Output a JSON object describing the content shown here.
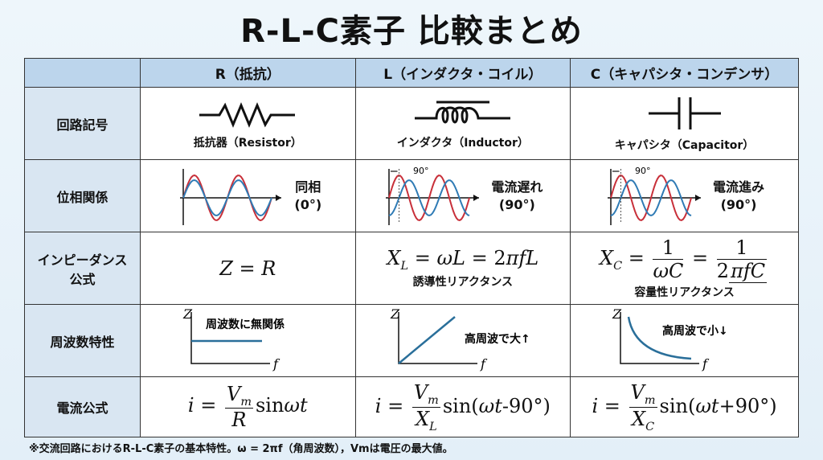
{
  "title": "R-L-C素子 比較まとめ",
  "headers": [
    "",
    "R（抵抗）",
    "L（インダクタ・コイル）",
    "C（キャパシタ・コンデンサ）"
  ],
  "rows": {
    "symbol": {
      "label": "回路記号",
      "r": "抵抗器（Resistor）",
      "l": "インダクタ（Inductor）",
      "c": "キャパシタ（Capacitor）"
    },
    "phase": {
      "label": "位相関係",
      "r": [
        "同相",
        "(0°)"
      ],
      "l": [
        "電流遅れ",
        "(90°)"
      ],
      "c": [
        "電流進み",
        "(90°)"
      ],
      "shift": "90°"
    },
    "impedance": {
      "label": [
        "インピーダンス",
        "公式"
      ],
      "r": "Z = R",
      "l": "X_L = ωL = 2πfL",
      "l_sub": "誘導性リアクタンス",
      "c": "X_C = 1/ωC = 1/2πfC",
      "c_sub": "容量性リアクタンス"
    },
    "freq": {
      "label": "周波数特性",
      "r": "周波数に無関係",
      "l": "高周波で大↑",
      "c": "高周波で小↓",
      "axis_y": "Z",
      "axis_x": "f"
    },
    "current": {
      "label": "電流公式",
      "r": "i = Vm/R sinωt",
      "l": "i = Vm/X_L sin(ωt-90°)",
      "c": "i = Vm/X_C sin(ωt+90°)"
    }
  },
  "footnote": "※交流回路におけるR-L-C素子の基本特性。ω = 2πf（角周波数），Vmは電圧の最大値。",
  "colors": {
    "voltage": "#c8303a",
    "current": "#2f7bb5",
    "header": "#bcd5ec",
    "rowhead": "#d9e6f2"
  }
}
